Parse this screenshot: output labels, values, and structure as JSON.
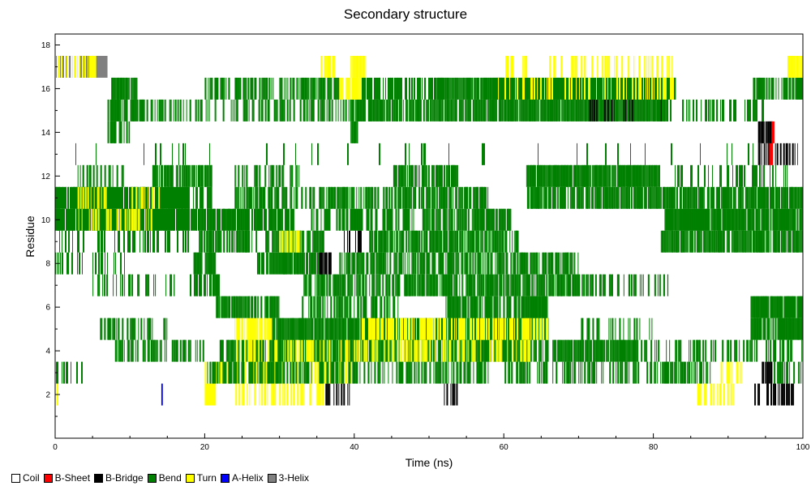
{
  "chart_data": {
    "type": "heatmap",
    "title": "Secondary structure",
    "xlabel": "Time (ns)",
    "ylabel": "Residue",
    "xlim": [
      0,
      100
    ],
    "ylim": [
      0,
      18.5
    ],
    "xticks": [
      0,
      20,
      40,
      60,
      80,
      100
    ],
    "yticks": [
      2,
      4,
      6,
      8,
      10,
      12,
      14,
      16,
      18
    ],
    "grid": false,
    "legend_placement": "bottom-left",
    "residues": [
      1,
      2,
      3,
      4,
      5,
      6,
      7,
      8,
      9,
      10,
      11,
      12,
      13,
      14,
      15,
      16,
      17
    ],
    "categories": [
      {
        "name": "Coil",
        "color": "#ffffff"
      },
      {
        "name": "B-Sheet",
        "color": "#ff0000"
      },
      {
        "name": "B-Bridge",
        "color": "#000000"
      },
      {
        "name": "Bend",
        "color": "#008000"
      },
      {
        "name": "Turn",
        "color": "#ffff00"
      },
      {
        "name": "A-Helix",
        "color": "#0000ff"
      },
      {
        "name": "3-Helix",
        "color": "#808080"
      }
    ],
    "segments": [
      {
        "residue": 2,
        "start": 0.2,
        "end": 0.4,
        "state": "Turn"
      },
      {
        "residue": 2,
        "start": 14.2,
        "end": 14.4,
        "state": "A-Helix"
      },
      {
        "residue": 2,
        "start": 20.0,
        "end": 21.5,
        "state": "Turn"
      },
      {
        "residue": 2,
        "start": 24.0,
        "end": 36.0,
        "state": "Turn",
        "density": 0.35
      },
      {
        "residue": 2,
        "start": 35.5,
        "end": 40.0,
        "state": "B-Bridge",
        "density": 0.3
      },
      {
        "residue": 2,
        "start": 52.0,
        "end": 54.0,
        "state": "B-Bridge",
        "density": 0.4
      },
      {
        "residue": 2,
        "start": 85.0,
        "end": 92.0,
        "state": "Turn",
        "density": 0.3
      },
      {
        "residue": 2,
        "start": 93.5,
        "end": 99.0,
        "state": "B-Bridge",
        "density": 0.45
      },
      {
        "residue": 3,
        "start": 0.0,
        "end": 4.0,
        "state": "Bend",
        "density": 0.3
      },
      {
        "residue": 3,
        "start": 20.0,
        "end": 40.0,
        "state": "Turn",
        "density": 0.45
      },
      {
        "residue": 3,
        "start": 20.0,
        "end": 58.0,
        "state": "Bend",
        "density": 0.45
      },
      {
        "residue": 3,
        "start": 60.0,
        "end": 88.0,
        "state": "Bend",
        "density": 0.4
      },
      {
        "residue": 3,
        "start": 89.0,
        "end": 92.0,
        "state": "Turn",
        "density": 0.4
      },
      {
        "residue": 3,
        "start": 94.5,
        "end": 96.0,
        "state": "B-Bridge",
        "density": 0.8
      },
      {
        "residue": 3,
        "start": 96.0,
        "end": 100.0,
        "state": "Bend",
        "density": 0.35
      },
      {
        "residue": 4,
        "start": 8.0,
        "end": 20.0,
        "state": "Bend",
        "density": 0.55
      },
      {
        "residue": 4,
        "start": 22.0,
        "end": 66.0,
        "state": "Bend",
        "density": 0.75
      },
      {
        "residue": 4,
        "start": 24.0,
        "end": 64.0,
        "state": "Turn",
        "density": 0.35
      },
      {
        "residue": 4,
        "start": 66.5,
        "end": 78.0,
        "state": "Bend",
        "density": 0.9
      },
      {
        "residue": 4,
        "start": 78.0,
        "end": 100.0,
        "state": "Bend",
        "density": 0.3
      },
      {
        "residue": 5,
        "start": 6.0,
        "end": 15.0,
        "state": "Bend",
        "density": 0.45
      },
      {
        "residue": 5,
        "start": 24.0,
        "end": 29.0,
        "state": "Turn",
        "density": 0.6
      },
      {
        "residue": 5,
        "start": 29.0,
        "end": 66.0,
        "state": "Bend",
        "density": 0.9
      },
      {
        "residue": 5,
        "start": 41.0,
        "end": 66.0,
        "state": "Turn",
        "density": 0.55
      },
      {
        "residue": 5,
        "start": 70.0,
        "end": 80.0,
        "state": "Bend",
        "density": 0.2
      },
      {
        "residue": 5,
        "start": 93.0,
        "end": 100.0,
        "state": "Bend",
        "density": 0.9
      },
      {
        "residue": 6,
        "start": 21.5,
        "end": 30.0,
        "state": "Bend",
        "density": 0.7
      },
      {
        "residue": 6,
        "start": 33.0,
        "end": 46.0,
        "state": "Bend",
        "density": 0.55
      },
      {
        "residue": 6,
        "start": 52.0,
        "end": 66.0,
        "state": "Bend",
        "density": 0.65
      },
      {
        "residue": 6,
        "start": 93.0,
        "end": 100.0,
        "state": "Bend",
        "density": 0.95
      },
      {
        "residue": 7,
        "start": 5.0,
        "end": 16.0,
        "state": "Bend",
        "density": 0.3
      },
      {
        "residue": 7,
        "start": 18.0,
        "end": 22.0,
        "state": "Bend",
        "density": 0.7
      },
      {
        "residue": 7,
        "start": 33.0,
        "end": 72.0,
        "state": "Bend",
        "density": 0.7
      },
      {
        "residue": 7,
        "start": 72.0,
        "end": 82.0,
        "state": "Bend",
        "density": 0.3
      },
      {
        "residue": 8,
        "start": 0.0,
        "end": 10.0,
        "state": "Bend",
        "density": 0.2
      },
      {
        "residue": 8,
        "start": 18.5,
        "end": 21.5,
        "state": "Bend",
        "density": 0.9
      },
      {
        "residue": 8,
        "start": 27.0,
        "end": 36.0,
        "state": "Bend",
        "density": 0.7
      },
      {
        "residue": 8,
        "start": 38.0,
        "end": 70.0,
        "state": "Bend",
        "density": 0.6
      },
      {
        "residue": 8,
        "start": 35.0,
        "end": 37.0,
        "state": "B-Bridge",
        "density": 0.6
      },
      {
        "residue": 9,
        "start": 0.0,
        "end": 18.0,
        "state": "Bend",
        "density": 0.35
      },
      {
        "residue": 9,
        "start": 19.0,
        "end": 27.0,
        "state": "Bend",
        "density": 0.6
      },
      {
        "residue": 9,
        "start": 28.0,
        "end": 36.0,
        "state": "Bend",
        "density": 0.75
      },
      {
        "residue": 9,
        "start": 30.0,
        "end": 33.0,
        "state": "Turn",
        "density": 0.7
      },
      {
        "residue": 9,
        "start": 38.5,
        "end": 41.0,
        "state": "B-Bridge",
        "density": 0.5
      },
      {
        "residue": 9,
        "start": 42.0,
        "end": 62.0,
        "state": "Bend",
        "density": 0.7
      },
      {
        "residue": 9,
        "start": 81.0,
        "end": 100.0,
        "state": "Bend",
        "density": 0.8
      },
      {
        "residue": 10,
        "start": 0.0,
        "end": 18.0,
        "state": "Bend",
        "density": 0.95
      },
      {
        "residue": 10,
        "start": 3.0,
        "end": 13.0,
        "state": "Turn",
        "density": 0.25
      },
      {
        "residue": 10,
        "start": 18.0,
        "end": 32.0,
        "state": "Bend",
        "density": 0.7
      },
      {
        "residue": 10,
        "start": 34.0,
        "end": 48.0,
        "state": "Bend",
        "density": 0.5
      },
      {
        "residue": 10,
        "start": 49.0,
        "end": 61.0,
        "state": "Bend",
        "density": 0.8
      },
      {
        "residue": 10,
        "start": 81.5,
        "end": 100.0,
        "state": "Bend",
        "density": 0.95
      },
      {
        "residue": 11,
        "start": 0.0,
        "end": 18.0,
        "state": "Bend",
        "density": 0.95
      },
      {
        "residue": 11,
        "start": 3.0,
        "end": 7.0,
        "state": "Turn",
        "density": 0.45
      },
      {
        "residue": 11,
        "start": 10.0,
        "end": 14.0,
        "state": "Turn",
        "density": 0.25
      },
      {
        "residue": 11,
        "start": 18.0,
        "end": 21.0,
        "state": "Bend",
        "density": 0.6
      },
      {
        "residue": 11,
        "start": 24.0,
        "end": 46.0,
        "state": "Bend",
        "density": 0.55
      },
      {
        "residue": 11,
        "start": 46.0,
        "end": 58.0,
        "state": "Bend",
        "density": 0.7
      },
      {
        "residue": 11,
        "start": 63.0,
        "end": 100.0,
        "state": "Bend",
        "density": 0.75
      },
      {
        "residue": 12,
        "start": 3.0,
        "end": 10.0,
        "state": "Bend",
        "density": 0.3
      },
      {
        "residue": 12,
        "start": 13.0,
        "end": 21.0,
        "state": "Bend",
        "density": 0.7
      },
      {
        "residue": 12,
        "start": 24.0,
        "end": 33.0,
        "state": "Bend",
        "density": 0.45
      },
      {
        "residue": 12,
        "start": 45.0,
        "end": 54.0,
        "state": "Bend",
        "density": 0.65
      },
      {
        "residue": 12,
        "start": 63.0,
        "end": 81.0,
        "state": "Bend",
        "density": 0.95
      },
      {
        "residue": 12,
        "start": 82.0,
        "end": 98.0,
        "state": "Bend",
        "density": 0.3
      },
      {
        "residue": 13,
        "start": 0.0,
        "end": 100.0,
        "state": "Bend",
        "density": 0.03
      },
      {
        "residue": 13,
        "start": 94.0,
        "end": 99.5,
        "state": "B-Bridge",
        "density": 0.45
      },
      {
        "residue": 13,
        "start": 95.5,
        "end": 96.0,
        "state": "B-Sheet"
      },
      {
        "residue": 14,
        "start": 7.0,
        "end": 10.0,
        "state": "Bend",
        "density": 0.35
      },
      {
        "residue": 14,
        "start": 39.5,
        "end": 40.5,
        "state": "Bend",
        "density": 0.9
      },
      {
        "residue": 14,
        "start": 94.0,
        "end": 96.0,
        "state": "B-Bridge",
        "density": 0.7
      },
      {
        "residue": 14,
        "start": 95.8,
        "end": 96.2,
        "state": "B-Sheet"
      },
      {
        "residue": 15,
        "start": 7.0,
        "end": 12.0,
        "state": "Bend",
        "density": 0.6
      },
      {
        "residue": 15,
        "start": 12.0,
        "end": 40.0,
        "state": "Bend",
        "density": 0.35
      },
      {
        "residue": 15,
        "start": 40.0,
        "end": 60.0,
        "state": "Bend",
        "density": 0.65
      },
      {
        "residue": 15,
        "start": 60.0,
        "end": 82.0,
        "state": "Bend",
        "density": 0.95
      },
      {
        "residue": 15,
        "start": 67.0,
        "end": 82.0,
        "state": "B-Bridge",
        "density": 0.12
      },
      {
        "residue": 15,
        "start": 82.0,
        "end": 95.0,
        "state": "Bend",
        "density": 0.35
      },
      {
        "residue": 16,
        "start": 7.5,
        "end": 11.0,
        "state": "Bend",
        "density": 0.9
      },
      {
        "residue": 16,
        "start": 20.0,
        "end": 38.0,
        "state": "Bend",
        "density": 0.5
      },
      {
        "residue": 16,
        "start": 38.0,
        "end": 41.0,
        "state": "Turn",
        "density": 0.8
      },
      {
        "residue": 16,
        "start": 41.0,
        "end": 52.0,
        "state": "Bend",
        "density": 0.55
      },
      {
        "residue": 16,
        "start": 51.0,
        "end": 60.0,
        "state": "Bend",
        "density": 0.95
      },
      {
        "residue": 16,
        "start": 59.0,
        "end": 83.0,
        "state": "Bend",
        "density": 0.95
      },
      {
        "residue": 16,
        "start": 59.0,
        "end": 83.0,
        "state": "Turn",
        "density": 0.2
      },
      {
        "residue": 16,
        "start": 93.0,
        "end": 100.0,
        "state": "Bend",
        "density": 0.45
      },
      {
        "residue": 17,
        "start": 0.0,
        "end": 5.5,
        "state": "3-Helix",
        "density": 0.6
      },
      {
        "residue": 17,
        "start": 0.0,
        "end": 5.5,
        "state": "Turn",
        "density": 0.45
      },
      {
        "residue": 17,
        "start": 5.5,
        "end": 7.0,
        "state": "3-Helix"
      },
      {
        "residue": 17,
        "start": 35.5,
        "end": 37.5,
        "state": "Turn",
        "density": 0.5
      },
      {
        "residue": 17,
        "start": 39.5,
        "end": 41.5,
        "state": "Turn",
        "density": 0.9
      },
      {
        "residue": 17,
        "start": 60.0,
        "end": 83.0,
        "state": "Turn",
        "density": 0.2
      },
      {
        "residue": 17,
        "start": 97.5,
        "end": 100.0,
        "state": "Turn",
        "density": 0.7
      }
    ]
  }
}
